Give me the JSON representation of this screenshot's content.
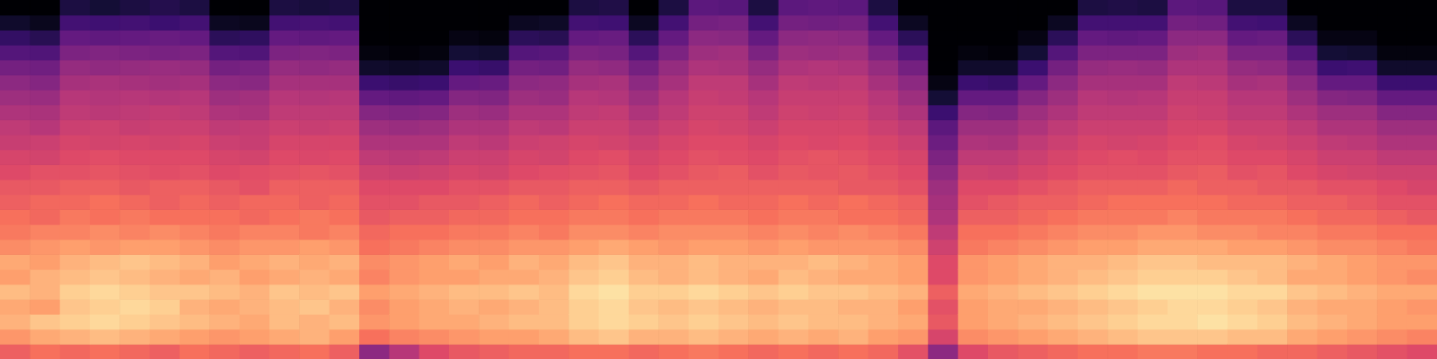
{
  "chart_data": {
    "type": "heatmap",
    "color": "magma",
    "tick_labels": false,
    "zlim": [
      0,
      100
    ],
    "values": [
      [
        66,
        78,
        84,
        82,
        86,
        80,
        82,
        76,
        72,
        70,
        66,
        64,
        60,
        58,
        54,
        52,
        48,
        44,
        40,
        34,
        26,
        18,
        8,
        0
      ],
      [
        70,
        82,
        88,
        80,
        84,
        84,
        80,
        78,
        74,
        68,
        68,
        64,
        62,
        57,
        55,
        50,
        47,
        43,
        38,
        33,
        25,
        15,
        5,
        0
      ],
      [
        68,
        84,
        90,
        88,
        90,
        86,
        84,
        80,
        74,
        72,
        68,
        66,
        62,
        60,
        58,
        55,
        52,
        50,
        46,
        42,
        36,
        30,
        22,
        12
      ],
      [
        70,
        86,
        92,
        90,
        92,
        88,
        86,
        78,
        76,
        70,
        70,
        66,
        63,
        61,
        57,
        56,
        51,
        49,
        47,
        41,
        37,
        29,
        21,
        10
      ],
      [
        68,
        84,
        90,
        92,
        90,
        86,
        88,
        80,
        74,
        72,
        68,
        64,
        62,
        60,
        58,
        54,
        52,
        50,
        46,
        42,
        36,
        30,
        22,
        12
      ],
      [
        66,
        82,
        88,
        90,
        88,
        84,
        86,
        80,
        76,
        70,
        66,
        66,
        61,
        60,
        57,
        55,
        53,
        49,
        45,
        43,
        35,
        31,
        20,
        14
      ],
      [
        70,
        80,
        86,
        84,
        88,
        82,
        84,
        78,
        74,
        70,
        68,
        66,
        62,
        60,
        58,
        55,
        52,
        50,
        46,
        42,
        36,
        30,
        22,
        12
      ],
      [
        68,
        78,
        84,
        82,
        86,
        84,
        80,
        76,
        72,
        70,
        66,
        64,
        60,
        58,
        55,
        52,
        48,
        44,
        40,
        34,
        26,
        16,
        6,
        0
      ],
      [
        66,
        80,
        82,
        84,
        84,
        80,
        82,
        78,
        74,
        68,
        68,
        62,
        61,
        57,
        54,
        53,
        47,
        45,
        39,
        35,
        25,
        17,
        5,
        0
      ],
      [
        68,
        82,
        86,
        86,
        88,
        82,
        84,
        78,
        74,
        70,
        68,
        66,
        62,
        60,
        58,
        55,
        52,
        50,
        46,
        42,
        36,
        30,
        22,
        12
      ],
      [
        70,
        84,
        84,
        88,
        86,
        84,
        82,
        80,
        72,
        72,
        66,
        66,
        63,
        59,
        58,
        54,
        52,
        49,
        46,
        41,
        37,
        29,
        23,
        11
      ],
      [
        66,
        80,
        86,
        84,
        88,
        82,
        84,
        78,
        74,
        70,
        68,
        66,
        62,
        60,
        58,
        55,
        52,
        50,
        46,
        42,
        36,
        30,
        22,
        12
      ],
      [
        40,
        70,
        78,
        76,
        80,
        74,
        76,
        70,
        68,
        64,
        62,
        60,
        56,
        52,
        48,
        44,
        38,
        30,
        20,
        8,
        2,
        0,
        0,
        0
      ],
      [
        50,
        74,
        80,
        80,
        82,
        78,
        78,
        72,
        70,
        66,
        62,
        60,
        55,
        51,
        48,
        43,
        37,
        29,
        19,
        7,
        1,
        0,
        0,
        0
      ],
      [
        60,
        76,
        82,
        82,
        84,
        80,
        80,
        74,
        70,
        66,
        64,
        60,
        56,
        52,
        48,
        44,
        38,
        30,
        20,
        8,
        2,
        0,
        0,
        0
      ],
      [
        64,
        78,
        82,
        84,
        86,
        80,
        82,
        76,
        72,
        68,
        64,
        62,
        58,
        55,
        52,
        48,
        44,
        38,
        30,
        20,
        10,
        3,
        0,
        0
      ],
      [
        66,
        80,
        84,
        82,
        86,
        82,
        80,
        76,
        72,
        68,
        66,
        62,
        57,
        55,
        51,
        48,
        43,
        37,
        31,
        19,
        9,
        2,
        0,
        0
      ],
      [
        68,
        80,
        86,
        84,
        88,
        82,
        84,
        78,
        74,
        70,
        68,
        64,
        60,
        58,
        55,
        52,
        48,
        44,
        40,
        34,
        26,
        16,
        6,
        0
      ],
      [
        68,
        82,
        86,
        86,
        86,
        84,
        82,
        78,
        72,
        70,
        66,
        64,
        61,
        57,
        56,
        51,
        48,
        43,
        41,
        33,
        27,
        15,
        7,
        0
      ],
      [
        70,
        86,
        90,
        90,
        92,
        88,
        86,
        80,
        76,
        72,
        68,
        66,
        62,
        60,
        58,
        55,
        52,
        50,
        46,
        42,
        36,
        30,
        22,
        12
      ],
      [
        70,
        88,
        92,
        92,
        94,
        90,
        88,
        82,
        76,
        72,
        70,
        66,
        63,
        61,
        57,
        55,
        53,
        49,
        47,
        41,
        35,
        31,
        21,
        13
      ],
      [
        68,
        84,
        90,
        88,
        90,
        86,
        84,
        80,
        74,
        70,
        68,
        64,
        60,
        58,
        55,
        52,
        48,
        44,
        40,
        34,
        26,
        16,
        6,
        0
      ],
      [
        70,
        84,
        88,
        86,
        90,
        84,
        84,
        78,
        76,
        72,
        68,
        66,
        62,
        60,
        58,
        55,
        52,
        50,
        46,
        42,
        36,
        30,
        22,
        12
      ],
      [
        72,
        86,
        90,
        88,
        92,
        86,
        86,
        80,
        76,
        72,
        70,
        66,
        64,
        62,
        60,
        58,
        56,
        54,
        52,
        48,
        44,
        40,
        34,
        28
      ],
      [
        70,
        84,
        88,
        86,
        90,
        84,
        84,
        80,
        76,
        72,
        68,
        66,
        65,
        61,
        60,
        57,
        56,
        53,
        52,
        47,
        45,
        39,
        35,
        27
      ],
      [
        68,
        82,
        86,
        84,
        88,
        82,
        84,
        78,
        74,
        70,
        68,
        66,
        62,
        60,
        58,
        55,
        52,
        50,
        46,
        42,
        36,
        30,
        22,
        12
      ],
      [
        70,
        84,
        88,
        86,
        90,
        86,
        84,
        80,
        76,
        72,
        70,
        66,
        64,
        62,
        60,
        58,
        56,
        54,
        52,
        48,
        44,
        40,
        34,
        28
      ],
      [
        68,
        82,
        86,
        86,
        88,
        84,
        86,
        78,
        74,
        72,
        68,
        66,
        63,
        63,
        59,
        58,
        55,
        54,
        51,
        49,
        43,
        41,
        33,
        29
      ],
      [
        70,
        84,
        86,
        84,
        88,
        82,
        84,
        78,
        76,
        70,
        70,
        64,
        64,
        62,
        60,
        58,
        56,
        54,
        52,
        48,
        44,
        40,
        34,
        28
      ],
      [
        68,
        80,
        84,
        84,
        86,
        82,
        82,
        78,
        74,
        70,
        68,
        64,
        62,
        60,
        58,
        55,
        52,
        50,
        46,
        42,
        36,
        30,
        22,
        12
      ],
      [
        62,
        78,
        82,
        80,
        84,
        80,
        80,
        76,
        72,
        68,
        66,
        62,
        60,
        58,
        55,
        52,
        48,
        44,
        40,
        34,
        26,
        16,
        6,
        0
      ],
      [
        40,
        58,
        64,
        62,
        66,
        60,
        60,
        56,
        52,
        48,
        46,
        44,
        40,
        36,
        32,
        28,
        20,
        10,
        3,
        0,
        0,
        0,
        0,
        0
      ],
      [
        60,
        76,
        80,
        80,
        82,
        78,
        78,
        72,
        70,
        66,
        62,
        60,
        56,
        52,
        48,
        44,
        38,
        30,
        20,
        8,
        2,
        0,
        0,
        0
      ],
      [
        64,
        78,
        82,
        82,
        84,
        80,
        80,
        74,
        70,
        66,
        64,
        60,
        55,
        52,
        47,
        44,
        37,
        30,
        19,
        8,
        1,
        0,
        0,
        0
      ],
      [
        66,
        80,
        84,
        82,
        86,
        82,
        82,
        76,
        72,
        68,
        66,
        62,
        58,
        55,
        52,
        48,
        44,
        38,
        30,
        20,
        10,
        3,
        0,
        0
      ],
      [
        68,
        82,
        86,
        84,
        88,
        84,
        84,
        78,
        74,
        70,
        66,
        64,
        60,
        58,
        55,
        52,
        48,
        44,
        40,
        34,
        26,
        16,
        6,
        0
      ],
      [
        70,
        84,
        88,
        86,
        90,
        86,
        84,
        80,
        76,
        72,
        68,
        66,
        62,
        60,
        58,
        55,
        52,
        50,
        46,
        42,
        36,
        30,
        22,
        12
      ],
      [
        70,
        86,
        90,
        88,
        92,
        88,
        86,
        80,
        76,
        72,
        70,
        66,
        62,
        61,
        57,
        55,
        52,
        49,
        46,
        43,
        36,
        29,
        22,
        13
      ],
      [
        72,
        88,
        92,
        90,
        94,
        90,
        88,
        82,
        78,
        72,
        70,
        66,
        62,
        60,
        58,
        55,
        52,
        50,
        46,
        42,
        36,
        30,
        22,
        12
      ],
      [
        72,
        88,
        92,
        92,
        94,
        90,
        88,
        82,
        78,
        74,
        70,
        68,
        64,
        62,
        60,
        58,
        56,
        54,
        52,
        48,
        44,
        40,
        34,
        28
      ],
      [
        70,
        88,
        94,
        92,
        94,
        90,
        86,
        82,
        76,
        72,
        70,
        66,
        65,
        62,
        61,
        58,
        55,
        54,
        51,
        48,
        45,
        40,
        33,
        27
      ],
      [
        70,
        86,
        92,
        90,
        92,
        88,
        86,
        80,
        76,
        72,
        68,
        66,
        62,
        60,
        58,
        55,
        52,
        50,
        46,
        42,
        36,
        30,
        22,
        12
      ],
      [
        68,
        86,
        90,
        88,
        92,
        86,
        86,
        80,
        74,
        72,
        68,
        64,
        63,
        60,
        57,
        55,
        52,
        50,
        47,
        41,
        36,
        31,
        21,
        12
      ],
      [
        68,
        82,
        86,
        84,
        88,
        82,
        84,
        78,
        74,
        70,
        66,
        64,
        60,
        58,
        55,
        52,
        48,
        44,
        40,
        34,
        26,
        16,
        6,
        0
      ],
      [
        66,
        80,
        84,
        82,
        86,
        82,
        82,
        76,
        72,
        68,
        66,
        62,
        58,
        55,
        52,
        48,
        44,
        38,
        30,
        20,
        10,
        3,
        0,
        0
      ],
      [
        64,
        78,
        82,
        82,
        84,
        80,
        80,
        76,
        72,
        68,
        64,
        62,
        57,
        55,
        51,
        48,
        44,
        37,
        30,
        21,
        9,
        3,
        0,
        0
      ],
      [
        62,
        76,
        80,
        80,
        82,
        78,
        78,
        74,
        70,
        66,
        62,
        60,
        56,
        52,
        48,
        44,
        38,
        30,
        20,
        8,
        2,
        0,
        0,
        0
      ],
      [
        60,
        74,
        80,
        78,
        82,
        76,
        78,
        72,
        70,
        64,
        62,
        58,
        56,
        52,
        48,
        44,
        38,
        30,
        20,
        8,
        2,
        0,
        0,
        0
      ]
    ]
  }
}
